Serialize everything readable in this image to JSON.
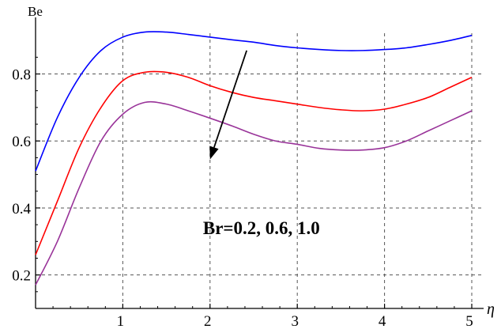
{
  "chart_data": {
    "type": "line",
    "title": "",
    "xlabel": "η",
    "ylabel": "Be",
    "xlim": [
      0,
      5
    ],
    "ylim": [
      0.1,
      0.95
    ],
    "xticks": [
      1,
      2,
      3,
      4,
      5
    ],
    "yticks": [
      0.2,
      0.4,
      0.6,
      0.8
    ],
    "grid": true,
    "grid_style": "dashed",
    "series": [
      {
        "color": "#0000ff",
        "x": [
          0,
          0.25,
          0.5,
          0.75,
          1.0,
          1.25,
          1.5,
          1.75,
          2.0,
          2.25,
          2.5,
          2.75,
          3.0,
          3.25,
          3.5,
          3.75,
          4.0,
          4.25,
          4.5,
          4.75,
          5.0
        ],
        "values": [
          0.51,
          0.67,
          0.79,
          0.87,
          0.91,
          0.925,
          0.925,
          0.918,
          0.91,
          0.902,
          0.895,
          0.885,
          0.878,
          0.873,
          0.87,
          0.87,
          0.873,
          0.878,
          0.888,
          0.9,
          0.915
        ]
      },
      {
        "color": "#ff0000",
        "x": [
          0,
          0.25,
          0.5,
          0.75,
          1.0,
          1.25,
          1.5,
          1.75,
          2.0,
          2.25,
          2.5,
          2.75,
          3.0,
          3.25,
          3.5,
          3.75,
          4.0,
          4.25,
          4.5,
          4.75,
          5.0
        ],
        "values": [
          0.26,
          0.42,
          0.58,
          0.7,
          0.78,
          0.805,
          0.805,
          0.79,
          0.765,
          0.745,
          0.73,
          0.72,
          0.71,
          0.7,
          0.693,
          0.69,
          0.695,
          0.71,
          0.73,
          0.76,
          0.79
        ]
      },
      {
        "color": "#993399",
        "x": [
          0,
          0.25,
          0.5,
          0.75,
          1.0,
          1.25,
          1.5,
          1.75,
          2.0,
          2.25,
          2.5,
          2.75,
          3.0,
          3.25,
          3.5,
          3.75,
          4.0,
          4.25,
          4.5,
          4.75,
          5.0
        ],
        "values": [
          0.17,
          0.3,
          0.46,
          0.6,
          0.68,
          0.715,
          0.71,
          0.69,
          0.668,
          0.645,
          0.62,
          0.6,
          0.59,
          0.578,
          0.573,
          0.573,
          0.58,
          0.6,
          0.63,
          0.66,
          0.69
        ]
      }
    ],
    "annotation": {
      "text": "Br=0.2, 0.6, 1.0",
      "x": 2.2,
      "y": 0.35
    },
    "arrow": {
      "from": [
        2.42,
        0.87
      ],
      "to": [
        2.0,
        0.545
      ],
      "color": "#000000"
    }
  }
}
